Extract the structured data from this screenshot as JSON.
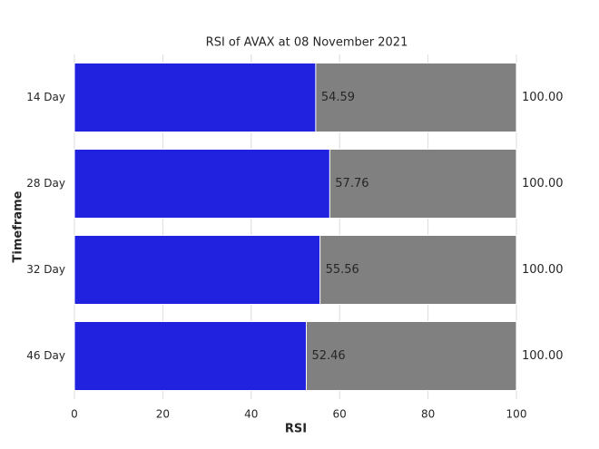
{
  "chart_data": {
    "type": "bar",
    "orientation": "horizontal",
    "title": "RSI of AVAX at 08 November 2021",
    "xlabel": "RSI",
    "ylabel": "Timeframe",
    "categories": [
      "14 Day",
      "28 Day",
      "32 Day",
      "46 Day"
    ],
    "series": [
      {
        "color": "#808080",
        "values": [
          100,
          100,
          100,
          100
        ],
        "value_labels": [
          "100.00",
          "100.00",
          "100.00",
          "100.00"
        ]
      },
      {
        "color": "#2121e0",
        "values": [
          54.59,
          57.76,
          55.56,
          52.46
        ]
      }
    ],
    "xlim": [
      0,
      100
    ],
    "xticks": [
      0,
      20,
      40,
      60,
      80,
      100
    ],
    "grid": true
  }
}
